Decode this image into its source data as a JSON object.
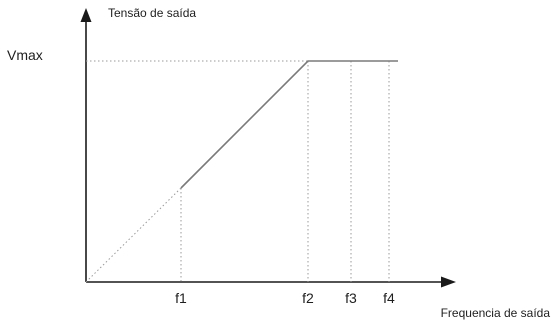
{
  "diagram": {
    "y_axis_label": "Tensão de saída",
    "x_axis_label": "Frequencia de saída",
    "vmax_label": "Vmax",
    "x_ticks": [
      "f1",
      "f2",
      "f3",
      "f4"
    ]
  },
  "colors": {
    "axis": "#1a1a1a",
    "curve": "#7a7a7a",
    "guide": "#9a9a9a",
    "text": "#1e1e1e"
  }
}
